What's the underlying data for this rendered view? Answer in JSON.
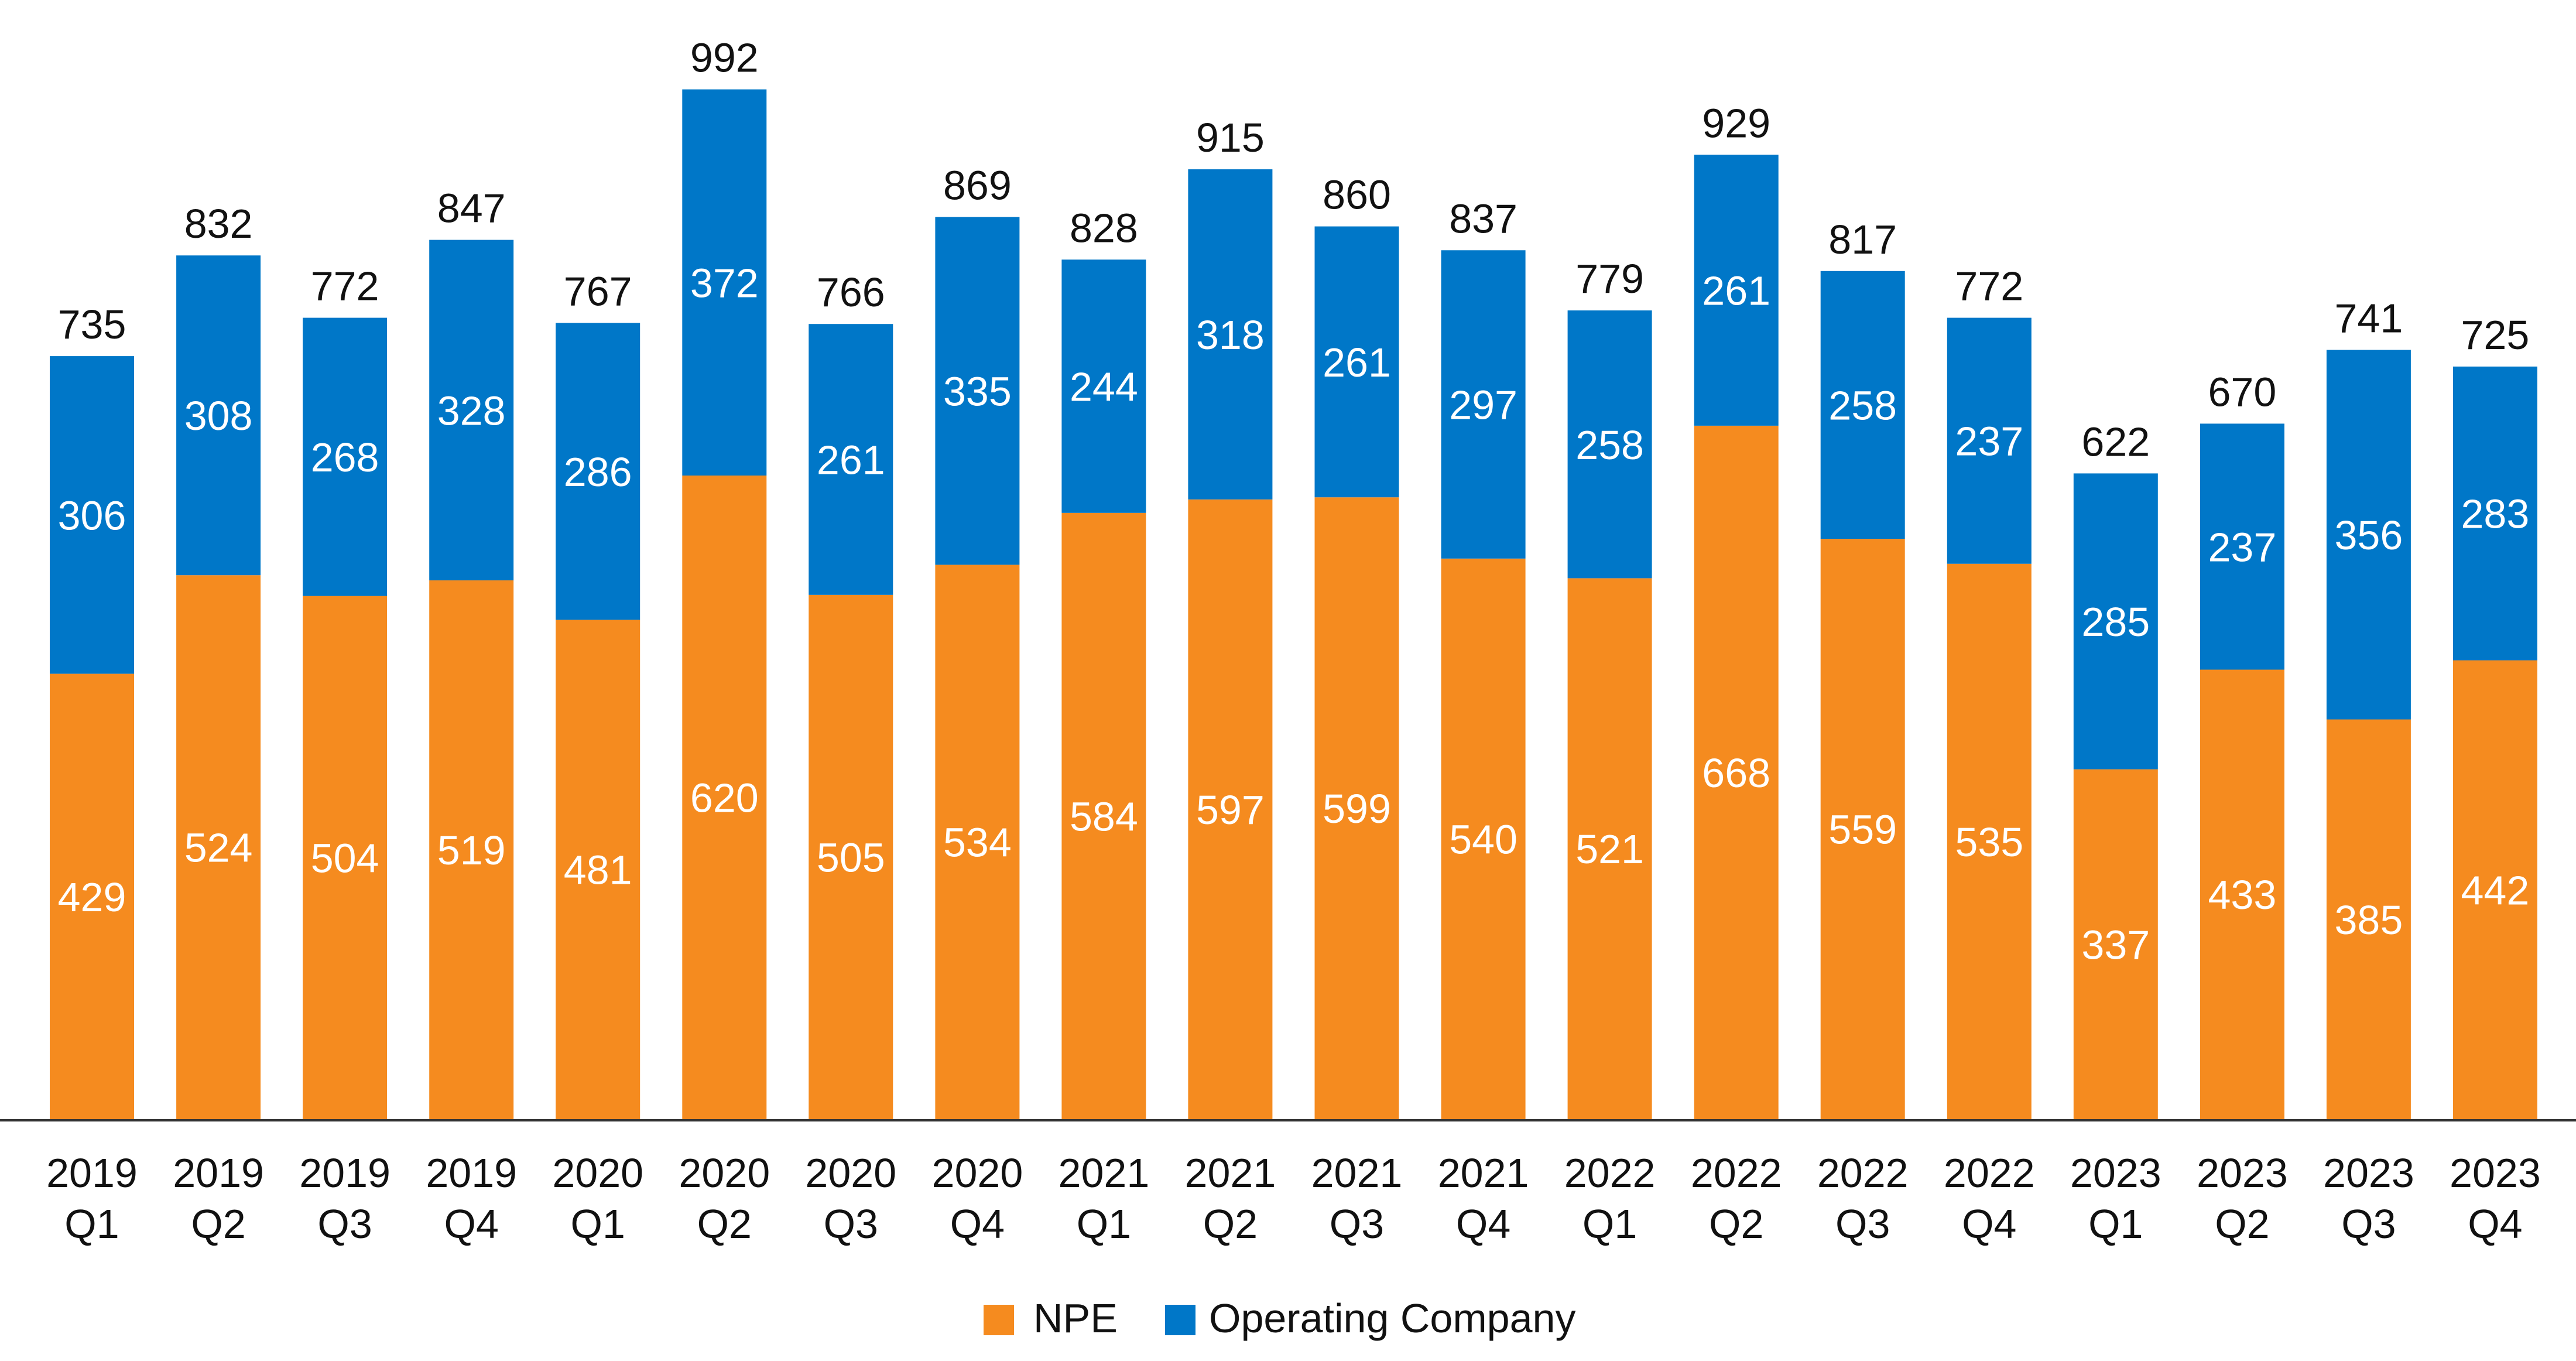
{
  "chart_data": {
    "type": "bar",
    "stacked": true,
    "title": "",
    "xlabel": "",
    "ylabel": "",
    "ylim": [
      0,
      1110
    ],
    "grid": false,
    "legend_position": "bottom",
    "categories": [
      [
        "2019",
        "Q1"
      ],
      [
        "2019",
        "Q2"
      ],
      [
        "2019",
        "Q3"
      ],
      [
        "2019",
        "Q4"
      ],
      [
        "2020",
        "Q1"
      ],
      [
        "2020",
        "Q2"
      ],
      [
        "2020",
        "Q3"
      ],
      [
        "2020",
        "Q4"
      ],
      [
        "2021",
        "Q1"
      ],
      [
        "2021",
        "Q2"
      ],
      [
        "2021",
        "Q3"
      ],
      [
        "2021",
        "Q4"
      ],
      [
        "2022",
        "Q1"
      ],
      [
        "2022",
        "Q2"
      ],
      [
        "2022",
        "Q3"
      ],
      [
        "2022",
        "Q4"
      ],
      [
        "2023",
        "Q1"
      ],
      [
        "2023",
        "Q2"
      ],
      [
        "2023",
        "Q3"
      ],
      [
        "2023",
        "Q4"
      ]
    ],
    "series": [
      {
        "name": "NPE",
        "color": "#F58B1F",
        "values": [
          429,
          524,
          504,
          519,
          481,
          620,
          505,
          534,
          584,
          597,
          599,
          540,
          521,
          668,
          559,
          535,
          337,
          433,
          385,
          442
        ]
      },
      {
        "name": "Operating Company",
        "color": "#0077C8",
        "values": [
          306,
          308,
          268,
          328,
          286,
          372,
          261,
          335,
          244,
          318,
          261,
          297,
          258,
          261,
          258,
          237,
          285,
          237,
          356,
          283
        ]
      }
    ],
    "totals": [
      735,
      832,
      772,
      847,
      767,
      992,
      766,
      869,
      828,
      915,
      860,
      837,
      779,
      929,
      817,
      772,
      622,
      670,
      741,
      725
    ],
    "colors": {
      "inner_label": "#FFFFFF",
      "total_label": "#111111",
      "tick_label": "#111111",
      "axis": "#333333"
    }
  }
}
